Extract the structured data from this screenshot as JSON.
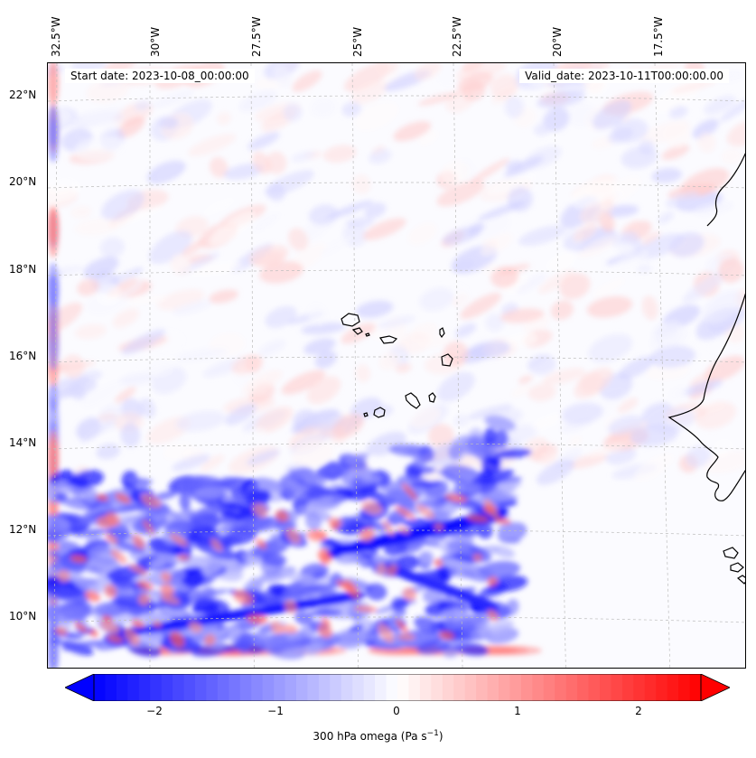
{
  "map": {
    "annotation_left": "Start date: 2023-10-08_00:00:00",
    "annotation_right": "Valid_date: 2023-10-11T00:00:00.00",
    "longitude_labels": [
      "32.5°W",
      "30°W",
      "27.5°W",
      "25°W",
      "22.5°W",
      "20°W",
      "17.5°W"
    ],
    "latitude_labels": [
      "22°N",
      "20°N",
      "18°N",
      "16°N",
      "14°N",
      "12°N",
      "10°N"
    ],
    "field": "300 hPa omega",
    "colormap": "bwr",
    "colors": {
      "negative": "#0000ff",
      "zero": "#ffffff",
      "positive": "#ff0000",
      "coastline": "#000000"
    }
  },
  "colorbar": {
    "label_prefix": "300 hPa omega (Pa s",
    "label_exponent": "−1",
    "label_suffix": ")",
    "ticks": [
      "−2",
      "−1",
      "0",
      "1",
      "2"
    ],
    "range": [
      -2.7,
      2.7
    ],
    "extend": "both"
  }
}
